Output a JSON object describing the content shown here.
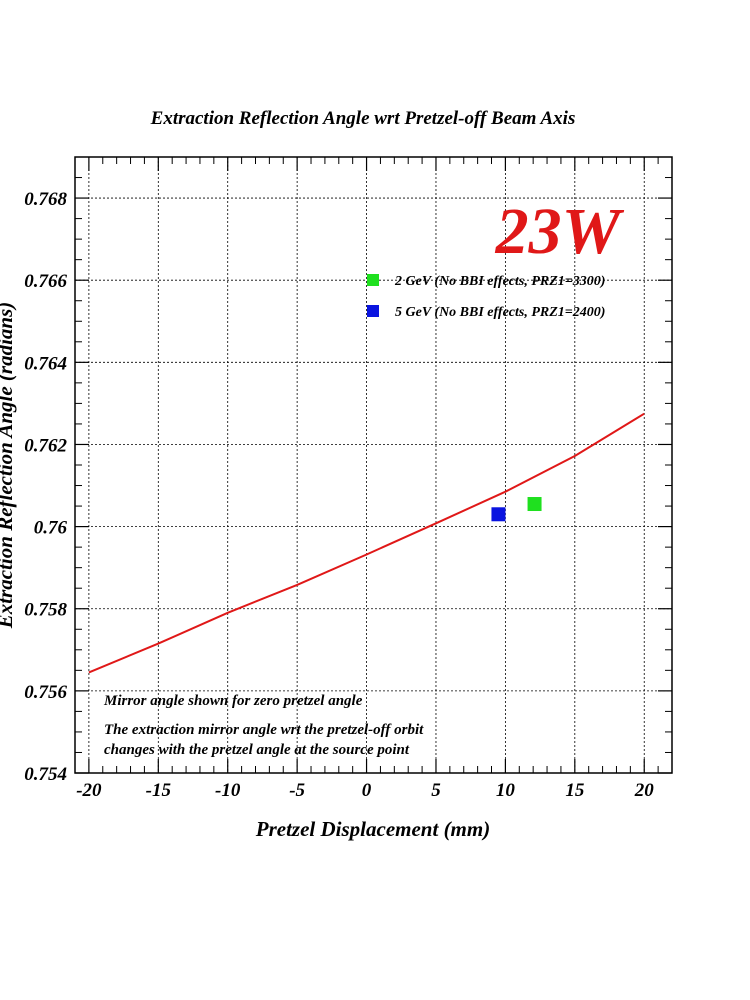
{
  "chart_data": {
    "type": "line",
    "title": "Extraction Reflection Angle wrt Pretzel-off Beam Axis",
    "xlabel": "Pretzel Displacement (mm)",
    "ylabel": "Extraction Reflection Angle (radians)",
    "xlim": [
      -21,
      22
    ],
    "ylim": [
      0.754,
      0.769
    ],
    "x_ticks": [
      -20,
      -15,
      -10,
      -5,
      0,
      5,
      10,
      15,
      20
    ],
    "x_tick_labels": [
      "-20",
      "-15",
      "-10",
      "-5",
      "0",
      "5",
      "10",
      "15",
      "20"
    ],
    "y_ticks": [
      0.754,
      0.756,
      0.758,
      0.76,
      0.762,
      0.764,
      0.766,
      0.768
    ],
    "y_tick_labels": [
      "0.754",
      "0.756",
      "0.758",
      "0.76",
      "0.762",
      "0.764",
      "0.766",
      "0.768"
    ],
    "grid": true,
    "series": [
      {
        "name": "",
        "kind": "line",
        "color": "#e01818",
        "x": [
          -20,
          -15,
          -10,
          -5,
          0,
          5,
          10,
          15,
          20
        ],
        "y": [
          0.75645,
          0.75715,
          0.7579,
          0.75858,
          0.75932,
          0.76008,
          0.76085,
          0.76172,
          0.76275
        ]
      },
      {
        "name": "2 GeV (No BBI effects, PRZ1=3300)",
        "kind": "scatter",
        "color": "#1fe01f",
        "x": [
          12.1
        ],
        "y": [
          0.76055
        ]
      },
      {
        "name": "5 GeV (No BBI effects, PRZ1=2400)",
        "kind": "scatter",
        "color": "#0a14e0",
        "x": [
          9.5
        ],
        "y": [
          0.7603
        ]
      }
    ],
    "legend": {
      "placement": "top-right",
      "entries": [
        {
          "label": "2 GeV (No BBI effects, PRZ1=3300)",
          "color": "#1fe01f"
        },
        {
          "label": "5 GeV (No BBI effects, PRZ1=2400)",
          "color": "#0a14e0"
        }
      ]
    },
    "annotations": [
      {
        "text": "23W",
        "color": "#e01818"
      },
      {
        "text": "Mirror angle shown for zero pretzel angle"
      },
      {
        "text": "The extraction mirror angle wrt the pretzel-off orbit"
      },
      {
        "text": "changes with the pretzel angle at the source point"
      }
    ]
  }
}
